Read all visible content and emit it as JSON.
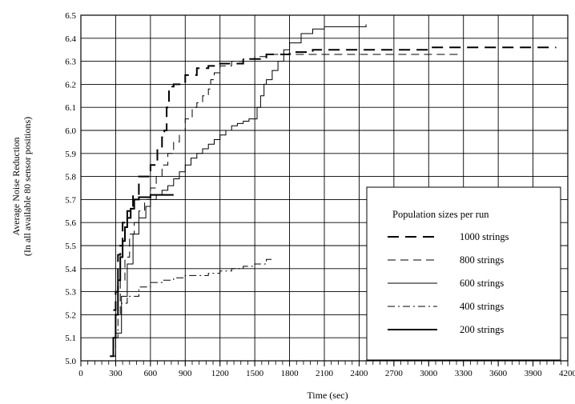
{
  "chart_data": {
    "type": "line",
    "xlabel": "Time (sec)",
    "ylabel": "Average Noise Reduction",
    "ylabel2": "(In all available 80 sensor positions)",
    "xlim": [
      0,
      4200
    ],
    "ylim": [
      5.0,
      6.5
    ],
    "grid": true,
    "x_ticks": [
      "0",
      "300",
      "600",
      "900",
      "1200",
      "1500",
      "1800",
      "2100",
      "2400",
      "2700",
      "3000",
      "3300",
      "3600",
      "3900",
      "4200"
    ],
    "y_ticks": [
      "5.0",
      "5.1",
      "5.2",
      "5.3",
      "5.4",
      "5.5",
      "5.6",
      "5.7",
      "5.8",
      "5.9",
      "6.0",
      "6.1",
      "6.2",
      "6.3",
      "6.4",
      "6.5"
    ],
    "legend": {
      "title": "Population sizes per run",
      "placement": "lower-right"
    },
    "series": [
      {
        "name": "1000 strings",
        "style": "long-dash",
        "x": [
          280,
          300,
          320,
          340,
          360,
          400,
          450,
          500,
          550,
          600,
          660,
          700,
          720,
          740,
          760,
          800,
          900,
          1000,
          1100,
          1200,
          1400,
          1600,
          1800,
          2000,
          2400,
          3000,
          3600,
          4100
        ],
        "y": [
          5.22,
          5.3,
          5.46,
          5.5,
          5.6,
          5.65,
          5.72,
          5.8,
          5.8,
          5.85,
          5.92,
          5.97,
          6.0,
          6.1,
          6.19,
          6.2,
          6.24,
          6.27,
          6.28,
          6.29,
          6.31,
          6.33,
          6.34,
          6.35,
          6.35,
          6.36,
          6.36,
          6.36
        ]
      },
      {
        "name": "800 strings",
        "style": "dash",
        "x": [
          260,
          300,
          340,
          380,
          420,
          460,
          500,
          550,
          600,
          650,
          700,
          750,
          800,
          850,
          900,
          960,
          1000,
          1050,
          1100,
          1120,
          1150,
          1200,
          1300,
          1400,
          1500,
          1600,
          1800,
          2000,
          2200,
          2500,
          2800,
          3000,
          3250
        ],
        "y": [
          5.02,
          5.2,
          5.35,
          5.45,
          5.55,
          5.6,
          5.65,
          5.7,
          5.75,
          5.8,
          5.85,
          5.9,
          5.95,
          6.0,
          6.05,
          6.1,
          6.12,
          6.15,
          6.18,
          6.22,
          6.25,
          6.28,
          6.3,
          6.31,
          6.32,
          6.33,
          6.33,
          6.33,
          6.33,
          6.33,
          6.33,
          6.33,
          6.34
        ]
      },
      {
        "name": "600 strings",
        "style": "thin-solid",
        "x": [
          260,
          300,
          350,
          400,
          450,
          500,
          560,
          600,
          650,
          700,
          750,
          800,
          850,
          900,
          950,
          1000,
          1050,
          1100,
          1150,
          1200,
          1250,
          1300,
          1350,
          1400,
          1450,
          1500,
          1520,
          1550,
          1580,
          1600,
          1650,
          1700,
          1750,
          1800,
          1900,
          2000,
          2100,
          2200,
          2300,
          2460
        ],
        "y": [
          5.02,
          5.12,
          5.28,
          5.42,
          5.55,
          5.62,
          5.67,
          5.7,
          5.72,
          5.74,
          5.76,
          5.79,
          5.82,
          5.85,
          5.88,
          5.9,
          5.92,
          5.94,
          5.96,
          5.98,
          6.0,
          6.02,
          6.03,
          6.04,
          6.05,
          6.05,
          6.1,
          6.15,
          6.2,
          6.22,
          6.26,
          6.3,
          6.35,
          6.38,
          6.42,
          6.44,
          6.45,
          6.45,
          6.45,
          6.46
        ]
      },
      {
        "name": "400 strings",
        "style": "dash-dot",
        "x": [
          290,
          320,
          350,
          400,
          500,
          600,
          700,
          800,
          900,
          1000,
          1100,
          1200,
          1300,
          1400,
          1500,
          1600,
          1650
        ],
        "y": [
          5.1,
          5.2,
          5.25,
          5.28,
          5.32,
          5.34,
          5.35,
          5.36,
          5.37,
          5.37,
          5.38,
          5.39,
          5.4,
          5.41,
          5.42,
          5.44,
          5.45
        ]
      },
      {
        "name": "200 strings",
        "style": "thick-solid",
        "x": [
          250,
          280,
          300,
          320,
          340,
          360,
          380,
          400,
          430,
          460,
          500,
          550,
          600,
          650,
          700,
          800
        ],
        "y": [
          5.02,
          5.1,
          5.2,
          5.35,
          5.45,
          5.52,
          5.58,
          5.62,
          5.66,
          5.7,
          5.71,
          5.71,
          5.72,
          5.72,
          5.72,
          5.72
        ]
      }
    ]
  }
}
